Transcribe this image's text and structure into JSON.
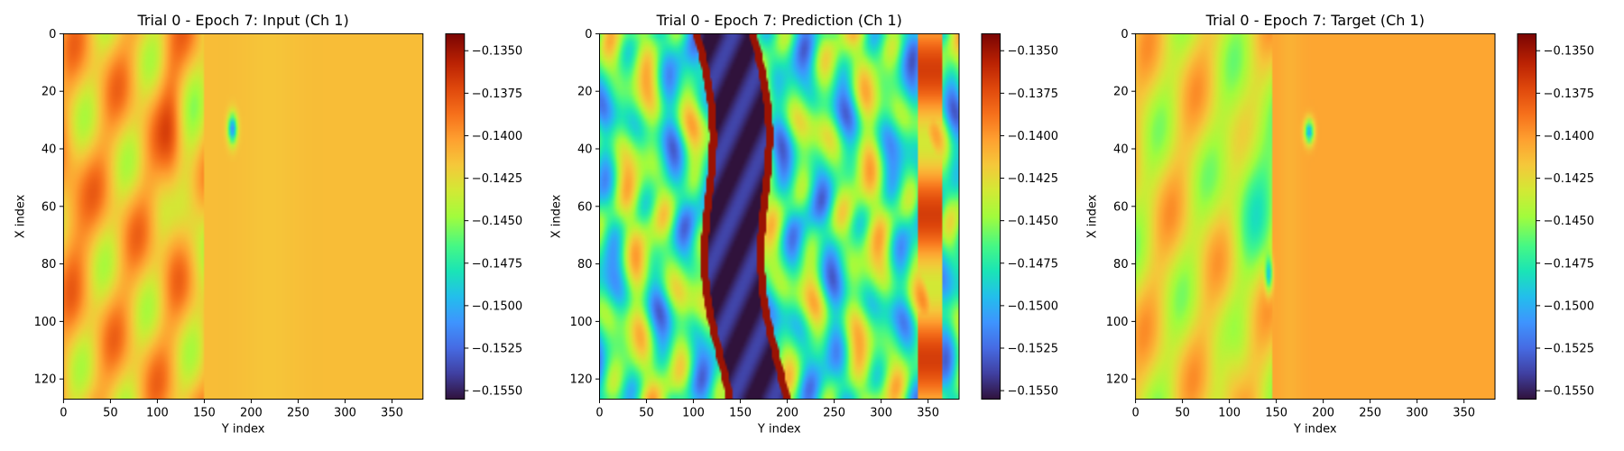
{
  "chart_data": [
    {
      "type": "heatmap",
      "title": "Trial 0 - Epoch 7: Input (Ch 1)",
      "xlabel": "Y index",
      "ylabel": "X index",
      "xlim": [
        0,
        383
      ],
      "ylim": [
        127,
        0
      ],
      "xticks": [
        0,
        50,
        100,
        150,
        200,
        250,
        300,
        350
      ],
      "yticks": [
        0,
        20,
        40,
        60,
        80,
        100,
        120
      ],
      "colormap": "turbo",
      "colorbar": {
        "vmin": -0.1555,
        "vmax": -0.134,
        "ticks": [
          "-0.1350",
          "-0.1375",
          "-0.1400",
          "-0.1425",
          "-0.1450",
          "-0.1475",
          "-0.1500",
          "-0.1525",
          "-0.1550"
        ],
        "tick_values": [
          -0.135,
          -0.1375,
          -0.14,
          -0.1425,
          -0.145,
          -0.1475,
          -0.15,
          -0.1525,
          -0.155
        ]
      },
      "field": "input"
    },
    {
      "type": "heatmap",
      "title": "Trial 0 - Epoch 7: Prediction (Ch 1)",
      "xlabel": "Y index",
      "ylabel": "X index",
      "xlim": [
        0,
        383
      ],
      "ylim": [
        127,
        0
      ],
      "xticks": [
        0,
        50,
        100,
        150,
        200,
        250,
        300,
        350
      ],
      "yticks": [
        0,
        20,
        40,
        60,
        80,
        100,
        120
      ],
      "colormap": "turbo",
      "colorbar": {
        "vmin": -0.1555,
        "vmax": -0.134,
        "ticks": [
          "-0.1350",
          "-0.1375",
          "-0.1400",
          "-0.1425",
          "-0.1450",
          "-0.1475",
          "-0.1500",
          "-0.1525",
          "-0.1550"
        ],
        "tick_values": [
          -0.135,
          -0.1375,
          -0.14,
          -0.1425,
          -0.145,
          -0.1475,
          -0.15,
          -0.1525,
          -0.155
        ]
      },
      "field": "prediction"
    },
    {
      "type": "heatmap",
      "title": "Trial 0 - Epoch 7: Target (Ch 1)",
      "xlabel": "Y index",
      "ylabel": "X index",
      "xlim": [
        0,
        383
      ],
      "ylim": [
        127,
        0
      ],
      "xticks": [
        0,
        50,
        100,
        150,
        200,
        250,
        300,
        350
      ],
      "yticks": [
        0,
        20,
        40,
        60,
        80,
        100,
        120
      ],
      "colormap": "turbo",
      "colorbar": {
        "vmin": -0.1555,
        "vmax": -0.134,
        "ticks": [
          "-0.1350",
          "-0.1375",
          "-0.1400",
          "-0.1425",
          "-0.1450",
          "-0.1475",
          "-0.1500",
          "-0.1525",
          "-0.1550"
        ],
        "tick_values": [
          -0.135,
          -0.1375,
          -0.14,
          -0.1425,
          -0.145,
          -0.1475,
          -0.15,
          -0.1525,
          -0.155
        ]
      },
      "field": "target"
    }
  ]
}
